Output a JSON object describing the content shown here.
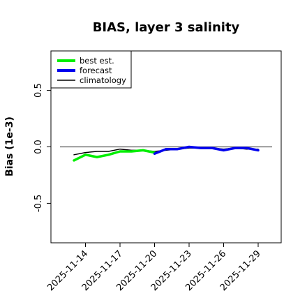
{
  "chart_data": {
    "type": "line",
    "title": "BIAS, layer 3 salinity",
    "xlabel": "",
    "ylabel": "Bias (1e-3)",
    "x": [
      "2025-11-13",
      "2025-11-14",
      "2025-11-15",
      "2025-11-16",
      "2025-11-17",
      "2025-11-18",
      "2025-11-19",
      "2025-11-20",
      "2025-11-21",
      "2025-11-22",
      "2025-11-23",
      "2025-11-24",
      "2025-11-25",
      "2025-11-26",
      "2025-11-27",
      "2025-11-28",
      "2025-11-29"
    ],
    "xlim": [
      "2025-11-11",
      "2025-12-01"
    ],
    "ylim": [
      -0.85,
      0.85
    ],
    "y_ticks": [
      {
        "value": -0.5,
        "label": "-0.5"
      },
      {
        "value": 0.0,
        "label": "0.0"
      },
      {
        "value": 0.5,
        "label": "0.5"
      }
    ],
    "x_ticks": [
      {
        "value": "2025-11-14",
        "label": "2025-11-14",
        "color": "#000000"
      },
      {
        "value": "2025-11-17",
        "label": "2025-11-17",
        "color": "#000000"
      },
      {
        "value": "2025-11-20",
        "label": "2025-11-20",
        "color": "#1a7a1a"
      },
      {
        "value": "2025-11-23",
        "label": "2025-11-23",
        "color": "#000000"
      },
      {
        "value": "2025-11-26",
        "label": "2025-11-26",
        "color": "#000000"
      },
      {
        "value": "2025-11-29",
        "label": "2025-11-29",
        "color": "#000000"
      }
    ],
    "reference_line": 0.0,
    "legend_position": "top-left",
    "series": [
      {
        "name": "best est.",
        "color": "#00ee00",
        "x": [
          "2025-11-13",
          "2025-11-14",
          "2025-11-15",
          "2025-11-16",
          "2025-11-17",
          "2025-11-18",
          "2025-11-19",
          "2025-11-20"
        ],
        "values": [
          -0.12,
          -0.07,
          -0.09,
          -0.07,
          -0.04,
          -0.04,
          -0.03,
          -0.05
        ]
      },
      {
        "name": "forecast",
        "color": "#0000ee",
        "x": [
          "2025-11-20",
          "2025-11-21",
          "2025-11-22",
          "2025-11-23",
          "2025-11-24",
          "2025-11-25",
          "2025-11-26",
          "2025-11-27",
          "2025-11-28",
          "2025-11-29"
        ],
        "values": [
          -0.06,
          -0.02,
          -0.02,
          0.0,
          -0.01,
          -0.01,
          -0.03,
          -0.01,
          -0.01,
          -0.03
        ]
      },
      {
        "name": "climatology",
        "color": "#000000",
        "x": [
          "2025-11-13",
          "2025-11-14",
          "2025-11-15",
          "2025-11-16",
          "2025-11-17",
          "2025-11-18",
          "2025-11-19",
          "2025-11-20",
          "2025-11-21",
          "2025-11-22",
          "2025-11-23",
          "2025-11-24",
          "2025-11-25",
          "2025-11-26",
          "2025-11-27",
          "2025-11-28",
          "2025-11-29"
        ],
        "values": [
          -0.07,
          -0.05,
          -0.04,
          -0.04,
          -0.02,
          -0.03,
          -0.03,
          -0.04,
          -0.03,
          -0.02,
          -0.01,
          -0.01,
          -0.01,
          -0.02,
          -0.01,
          -0.02,
          -0.02
        ]
      }
    ]
  }
}
